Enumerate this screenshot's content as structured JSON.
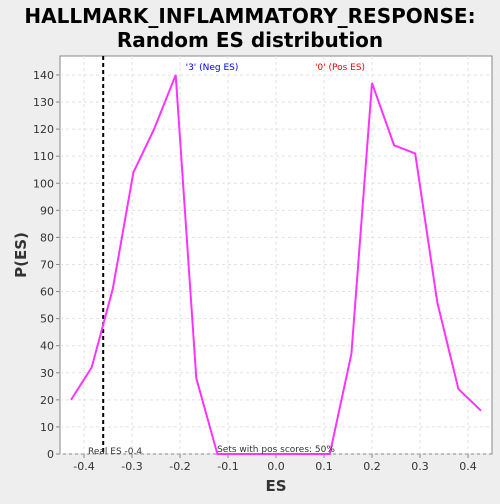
{
  "chart_data": {
    "type": "line",
    "title_line1": "HALLMARK_INFLAMMATORY_RESPONSE:",
    "title_line2": "Random ES distribution",
    "xlabel": "ES",
    "ylabel": "P(ES)",
    "xlim": [
      -0.45,
      0.45
    ],
    "ylim": [
      0,
      147
    ],
    "xticks": [
      -0.4,
      -0.3,
      -0.2,
      -0.1,
      0.0,
      0.1,
      0.2,
      0.3,
      0.4
    ],
    "xtick_labels": [
      "-0.4",
      "-0.3",
      "-0.2",
      "-0.1",
      "0.0",
      "0.1",
      "0.2",
      "0.3",
      "0.4"
    ],
    "yticks": [
      0,
      10,
      20,
      30,
      40,
      50,
      60,
      70,
      80,
      90,
      100,
      110,
      120,
      130,
      140
    ],
    "grid": true,
    "series": [
      {
        "color": "#ff33ff",
        "x": [
          -0.427,
          -0.384,
          -0.34,
          -0.297,
          -0.254,
          -0.209,
          -0.166,
          -0.122,
          0.0,
          0.112,
          0.157,
          0.2,
          0.246,
          0.29,
          0.336,
          0.38,
          0.427
        ],
        "y": [
          20,
          32,
          61,
          104,
          120,
          140,
          28,
          0,
          0,
          0,
          37,
          137,
          114,
          111,
          56,
          24,
          16
        ]
      }
    ],
    "real_es": -0.36,
    "annotations": {
      "neg_label": "'3' (Neg ES)",
      "neg_color": "#0000ff",
      "pos_label": "'0' (Pos ES)",
      "pos_color": "#ff0000",
      "real_es_label": "Real ES -0.4",
      "pos_scores_label": "Sets with pos scores: 50%"
    }
  }
}
